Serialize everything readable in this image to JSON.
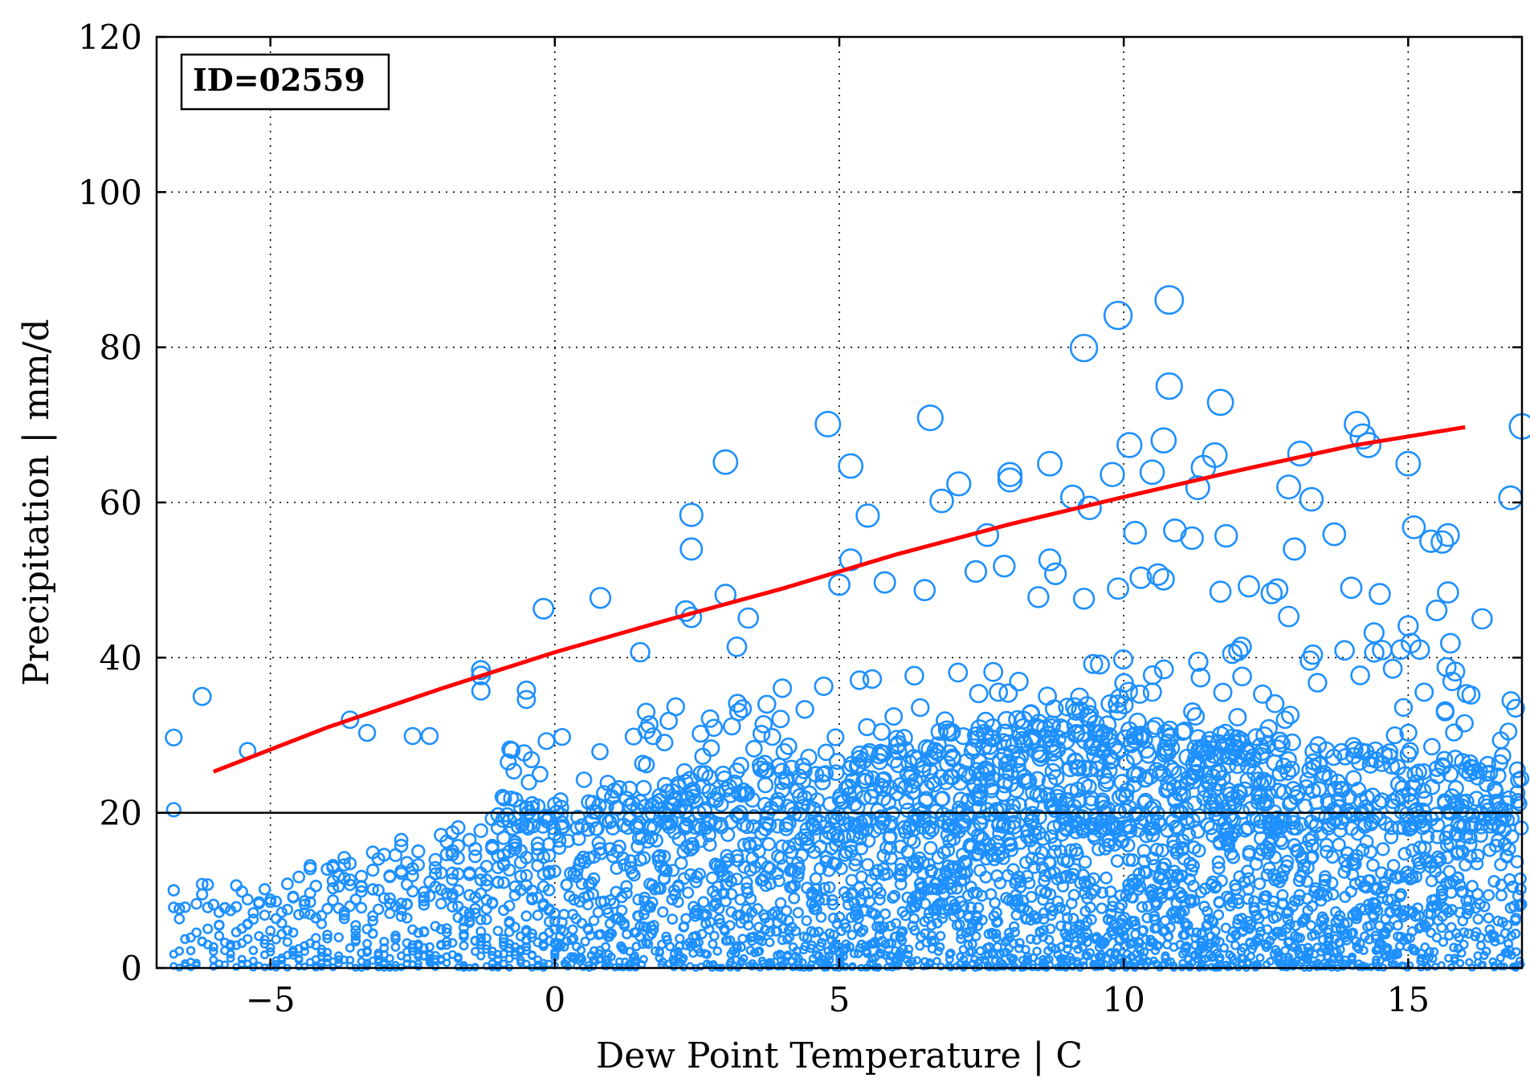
{
  "colors": {
    "points": "#1e90ff",
    "fit_line": "#ff0000",
    "axes": "#000000",
    "background": "#ffffff"
  },
  "chart_data": {
    "type": "scatter",
    "title": "",
    "id_label": "ID=02559",
    "xlabel": "Dew Point Temperature | C",
    "ylabel": "Precipitation | mm/d",
    "xlim": [
      -7,
      17
    ],
    "ylim": [
      0,
      120
    ],
    "xticks": [
      -5,
      0,
      5,
      10,
      15
    ],
    "xtick_labels": [
      "−5",
      "0",
      "5",
      "10",
      "15"
    ],
    "yticks": [
      0,
      20,
      40,
      60,
      80,
      100,
      120
    ],
    "ytick_labels": [
      "0",
      "20",
      "40",
      "60",
      "80",
      "100",
      "120"
    ],
    "grid": true,
    "reference_line_y": 20,
    "fit_line": {
      "x": [
        -6,
        -4,
        -2,
        0,
        2,
        4,
        6,
        8,
        10,
        12,
        14,
        16
      ],
      "y": [
        25.3,
        31.0,
        36.0,
        40.7,
        44.9,
        48.9,
        53.3,
        57.2,
        60.7,
        64.1,
        67.3,
        69.7
      ]
    },
    "highlighted_points": [
      {
        "x": -6.7,
        "y": 29.7
      },
      {
        "x": -6.2,
        "y": 35.0
      },
      {
        "x": -5.4,
        "y": 28.0
      },
      {
        "x": -6.7,
        "y": 20.4
      },
      {
        "x": -3.6,
        "y": 32.0
      },
      {
        "x": -3.3,
        "y": 30.3
      },
      {
        "x": -2.5,
        "y": 29.9
      },
      {
        "x": -2.2,
        "y": 29.9
      },
      {
        "x": -1.3,
        "y": 38.4
      },
      {
        "x": -1.3,
        "y": 37.7
      },
      {
        "x": -1.3,
        "y": 35.7
      },
      {
        "x": -0.2,
        "y": 46.3
      },
      {
        "x": -0.5,
        "y": 35.8
      },
      {
        "x": -0.5,
        "y": 34.6
      },
      {
        "x": 0.8,
        "y": 47.7
      },
      {
        "x": 1.5,
        "y": 40.7
      },
      {
        "x": 2.4,
        "y": 58.4
      },
      {
        "x": 2.4,
        "y": 54.0
      },
      {
        "x": 2.3,
        "y": 46.0
      },
      {
        "x": 2.4,
        "y": 45.2
      },
      {
        "x": 3.0,
        "y": 65.2
      },
      {
        "x": 3.0,
        "y": 48.1
      },
      {
        "x": 3.4,
        "y": 45.1
      },
      {
        "x": 3.2,
        "y": 41.4
      },
      {
        "x": 4.8,
        "y": 70.1
      },
      {
        "x": 5.2,
        "y": 64.7
      },
      {
        "x": 5.5,
        "y": 58.3
      },
      {
        "x": 5.2,
        "y": 52.6
      },
      {
        "x": 5.0,
        "y": 49.4
      },
      {
        "x": 5.8,
        "y": 49.7
      },
      {
        "x": 6.6,
        "y": 70.9
      },
      {
        "x": 6.5,
        "y": 48.7
      },
      {
        "x": 6.8,
        "y": 60.2
      },
      {
        "x": 7.1,
        "y": 62.4
      },
      {
        "x": 7.6,
        "y": 55.8
      },
      {
        "x": 7.4,
        "y": 51.1
      },
      {
        "x": 7.9,
        "y": 51.8
      },
      {
        "x": 8.0,
        "y": 63.6
      },
      {
        "x": 8.0,
        "y": 62.9
      },
      {
        "x": 8.7,
        "y": 65.0
      },
      {
        "x": 8.7,
        "y": 52.6
      },
      {
        "x": 8.8,
        "y": 50.8
      },
      {
        "x": 8.5,
        "y": 47.8
      },
      {
        "x": 9.3,
        "y": 79.9
      },
      {
        "x": 9.9,
        "y": 84.1
      },
      {
        "x": 10.8,
        "y": 86.1
      },
      {
        "x": 10.8,
        "y": 75.0
      },
      {
        "x": 10.7,
        "y": 68.0
      },
      {
        "x": 10.1,
        "y": 67.4
      },
      {
        "x": 10.5,
        "y": 63.9
      },
      {
        "x": 9.8,
        "y": 63.6
      },
      {
        "x": 9.1,
        "y": 60.7
      },
      {
        "x": 9.4,
        "y": 59.3
      },
      {
        "x": 10.2,
        "y": 56.1
      },
      {
        "x": 10.9,
        "y": 56.4
      },
      {
        "x": 11.2,
        "y": 55.4
      },
      {
        "x": 9.9,
        "y": 48.9
      },
      {
        "x": 10.3,
        "y": 50.3
      },
      {
        "x": 10.6,
        "y": 50.7
      },
      {
        "x": 10.7,
        "y": 50.1
      },
      {
        "x": 9.3,
        "y": 47.6
      },
      {
        "x": 11.7,
        "y": 72.9
      },
      {
        "x": 11.6,
        "y": 66.1
      },
      {
        "x": 11.4,
        "y": 64.5
      },
      {
        "x": 11.3,
        "y": 61.9
      },
      {
        "x": 11.8,
        "y": 55.7
      },
      {
        "x": 11.7,
        "y": 48.5
      },
      {
        "x": 12.2,
        "y": 49.2
      },
      {
        "x": 13.1,
        "y": 66.3
      },
      {
        "x": 12.9,
        "y": 62.0
      },
      {
        "x": 13.3,
        "y": 60.4
      },
      {
        "x": 13.0,
        "y": 54.0
      },
      {
        "x": 13.7,
        "y": 55.9
      },
      {
        "x": 12.7,
        "y": 48.8
      },
      {
        "x": 12.6,
        "y": 48.3
      },
      {
        "x": 14.1,
        "y": 70.1
      },
      {
        "x": 14.2,
        "y": 68.5
      },
      {
        "x": 14.3,
        "y": 67.4
      },
      {
        "x": 15.0,
        "y": 65.0
      },
      {
        "x": 15.1,
        "y": 56.8
      },
      {
        "x": 15.4,
        "y": 55.0
      },
      {
        "x": 15.7,
        "y": 55.8
      },
      {
        "x": 15.6,
        "y": 54.9
      },
      {
        "x": 14.0,
        "y": 49.0
      },
      {
        "x": 14.5,
        "y": 48.2
      },
      {
        "x": 15.7,
        "y": 48.4
      },
      {
        "x": 16.8,
        "y": 60.6
      },
      {
        "x": 17.0,
        "y": 69.8
      },
      {
        "x": 16.3,
        "y": 45.0
      },
      {
        "x": 15.5,
        "y": 46.1
      },
      {
        "x": 15.0,
        "y": 44.1
      },
      {
        "x": 14.4,
        "y": 43.2
      },
      {
        "x": 12.9,
        "y": 45.3
      }
    ],
    "bulk_scatter_description_free_note": ""
  }
}
